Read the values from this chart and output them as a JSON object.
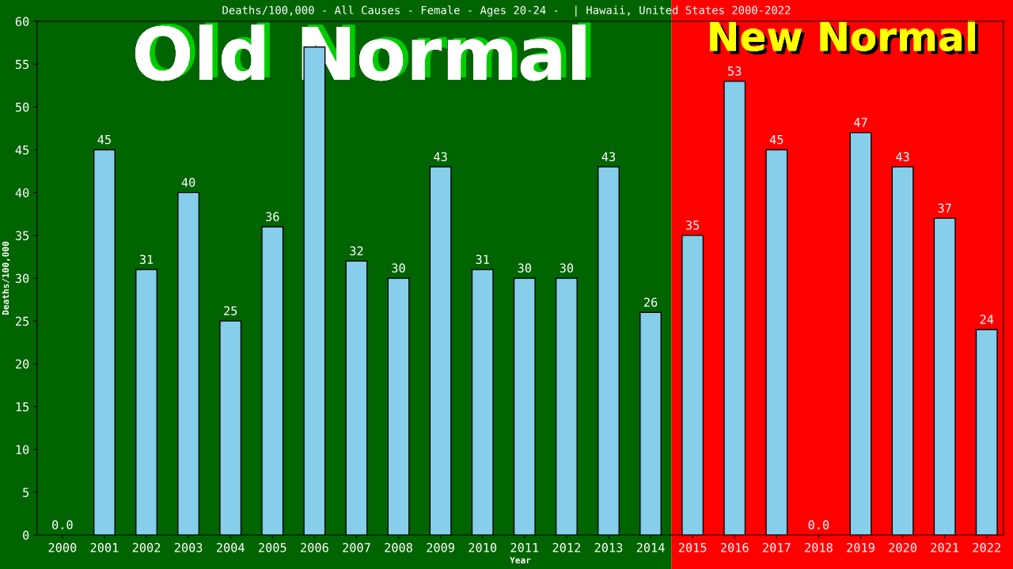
{
  "chart_data": {
    "type": "bar",
    "title": "Deaths/100,000 - All Causes - Female - Ages 20-24 -  | Hawaii, United States 2000-2022",
    "xlabel": "Year",
    "ylabel": "Deaths/100,000",
    "categories": [
      "2000",
      "2001",
      "2002",
      "2003",
      "2004",
      "2005",
      "2006",
      "2007",
      "2008",
      "2009",
      "2010",
      "2011",
      "2012",
      "2013",
      "2014",
      "2015",
      "2016",
      "2017",
      "2018",
      "2019",
      "2020",
      "2021",
      "2022"
    ],
    "values": [
      0,
      45,
      31,
      40,
      25,
      36,
      57,
      32,
      30,
      43,
      31,
      30,
      30,
      43,
      26,
      35,
      53,
      45,
      0,
      47,
      43,
      37,
      24
    ],
    "value_labels": [
      "0.0",
      "45",
      "31",
      "40",
      "25",
      "36",
      null,
      "32",
      "30",
      "43",
      "31",
      "30",
      "30",
      "43",
      "26",
      "35",
      "53",
      "45",
      "0.0",
      "47",
      "43",
      "37",
      "24"
    ],
    "color": "#87ceeb",
    "ylim": [
      0,
      60
    ],
    "yticks": [
      0,
      5,
      10,
      15,
      20,
      25,
      30,
      35,
      40,
      45,
      50,
      55,
      60
    ],
    "grid": false,
    "legend": false,
    "bands": [
      {
        "axis": "x",
        "from": "2000",
        "to": "2014",
        "label": "Old Normal",
        "color": "#006400"
      },
      {
        "axis": "x",
        "from": "2015",
        "to": "2022",
        "label": "New Normal",
        "color": "#ff0000"
      }
    ]
  }
}
